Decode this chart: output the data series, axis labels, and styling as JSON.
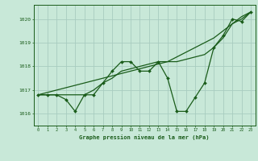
{
  "title": "Graphe pression niveau de la mer (hPa)",
  "background_color": "#c8e8d8",
  "grid_color": "#a8ccc0",
  "line_color": "#1a5c1a",
  "xlim": [
    -0.5,
    23.5
  ],
  "ylim": [
    1015.5,
    1020.6
  ],
  "yticks": [
    1016,
    1017,
    1018,
    1019,
    1020
  ],
  "xticks": [
    0,
    1,
    2,
    3,
    4,
    5,
    6,
    7,
    8,
    9,
    10,
    11,
    12,
    13,
    14,
    15,
    16,
    17,
    18,
    19,
    20,
    21,
    22,
    23
  ],
  "series1": [
    1016.8,
    1016.8,
    1016.8,
    1016.6,
    1016.1,
    1016.8,
    1016.8,
    1017.3,
    1017.8,
    1018.2,
    1018.2,
    1017.8,
    1017.8,
    1018.2,
    1017.5,
    1016.1,
    1016.1,
    1016.7,
    1017.3,
    1018.8,
    1019.3,
    1020.0,
    1019.9,
    1020.3
  ],
  "series2": [
    1016.8,
    1016.8,
    1016.8,
    1016.8,
    1016.8,
    1016.8,
    1017.0,
    1017.3,
    1017.5,
    1017.8,
    1017.9,
    1018.0,
    1018.1,
    1018.2,
    1018.2,
    1018.2,
    1018.3,
    1018.4,
    1018.5,
    1018.8,
    1019.2,
    1019.8,
    1020.0,
    1020.3
  ],
  "series3": [
    1016.8,
    1016.9,
    1017.0,
    1017.1,
    1017.2,
    1017.3,
    1017.4,
    1017.5,
    1017.6,
    1017.7,
    1017.8,
    1017.9,
    1018.0,
    1018.1,
    1018.2,
    1018.4,
    1018.6,
    1018.8,
    1019.0,
    1019.2,
    1019.5,
    1019.8,
    1020.1,
    1020.3
  ]
}
